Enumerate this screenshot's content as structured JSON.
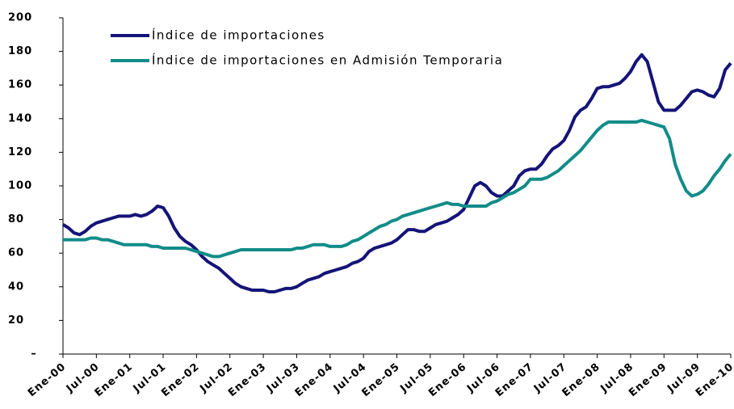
{
  "chart_data": {
    "type": "line",
    "categories": [
      "Ene-00",
      null,
      null,
      null,
      null,
      null,
      "Jul-00",
      null,
      null,
      null,
      null,
      null,
      "Ene-01",
      null,
      null,
      null,
      null,
      null,
      "Jul-01",
      null,
      null,
      null,
      null,
      null,
      "Ene-02",
      null,
      null,
      null,
      null,
      null,
      "Jul-02",
      null,
      null,
      null,
      null,
      null,
      "Ene-03",
      null,
      null,
      null,
      null,
      null,
      "Jul-03",
      null,
      null,
      null,
      null,
      null,
      "Ene-04",
      null,
      null,
      null,
      null,
      null,
      "Jul-04",
      null,
      null,
      null,
      null,
      null,
      "Ene-05",
      null,
      null,
      null,
      null,
      null,
      "Jul-05",
      null,
      null,
      null,
      null,
      null,
      "Ene-06",
      null,
      null,
      null,
      null,
      null,
      "Jul-06",
      null,
      null,
      null,
      null,
      null,
      "Ene-07",
      null,
      null,
      null,
      null,
      null,
      "Jul-07",
      null,
      null,
      null,
      null,
      null,
      "Ene-08",
      null,
      null,
      null,
      null,
      null,
      "Jul-08",
      null,
      null,
      null,
      null,
      null,
      "Ene-09",
      null,
      null,
      null,
      null,
      null,
      "Jul-09",
      null,
      null,
      null,
      null,
      null,
      "Ene-10"
    ],
    "series": [
      {
        "name": "Índice de importaciones",
        "color": "#141478",
        "values": [
          77,
          75,
          72,
          71,
          73,
          76,
          78,
          79,
          80,
          81,
          82,
          82,
          82,
          83,
          82,
          83,
          85,
          88,
          87,
          82,
          75,
          70,
          67,
          65,
          62,
          58,
          55,
          53,
          51,
          48,
          45,
          42,
          40,
          39,
          38,
          38,
          38,
          37,
          37,
          38,
          39,
          39,
          40,
          42,
          44,
          45,
          46,
          48,
          49,
          50,
          51,
          52,
          54,
          55,
          57,
          61,
          63,
          64,
          65,
          66,
          68,
          71,
          74,
          74,
          73,
          73,
          75,
          77,
          78,
          79,
          81,
          83,
          86,
          93,
          100,
          102,
          100,
          96,
          94,
          94,
          97,
          100,
          106,
          109,
          110,
          110,
          113,
          118,
          122,
          124,
          127,
          133,
          141,
          145,
          147,
          152,
          158,
          159,
          159,
          160,
          161,
          164,
          168,
          174,
          178,
          174,
          162,
          150,
          145,
          145,
          145,
          148,
          152,
          156,
          157,
          156,
          154,
          153,
          158,
          169,
          173
        ]
      },
      {
        "name": "Índice de importaciones en Admisión Temporaria",
        "color": "#128c88",
        "values": [
          68,
          68,
          68,
          68,
          68,
          69,
          69,
          68,
          68,
          67,
          66,
          65,
          65,
          65,
          65,
          65,
          64,
          64,
          63,
          63,
          63,
          63,
          63,
          62,
          61,
          60,
          59,
          58,
          58,
          59,
          60,
          61,
          62,
          62,
          62,
          62,
          62,
          62,
          62,
          62,
          62,
          62,
          63,
          63,
          64,
          65,
          65,
          65,
          64,
          64,
          64,
          65,
          67,
          68,
          70,
          72,
          74,
          76,
          77,
          79,
          80,
          82,
          83,
          84,
          85,
          86,
          87,
          88,
          89,
          90,
          89,
          89,
          88,
          88,
          88,
          88,
          88,
          90,
          91,
          93,
          95,
          96,
          98,
          100,
          104,
          104,
          104,
          105,
          107,
          109,
          112,
          115,
          118,
          121,
          125,
          129,
          133,
          136,
          138,
          138,
          138,
          138,
          138,
          138,
          139,
          138,
          137,
          136,
          135,
          128,
          113,
          104,
          97,
          94,
          95,
          97,
          101,
          106,
          110,
          115,
          119
        ]
      }
    ],
    "ylim": [
      0,
      200
    ],
    "yticks": [
      {
        "value": 0,
        "label": "–"
      },
      20,
      40,
      60,
      80,
      100,
      120,
      140,
      160,
      180,
      200
    ]
  }
}
